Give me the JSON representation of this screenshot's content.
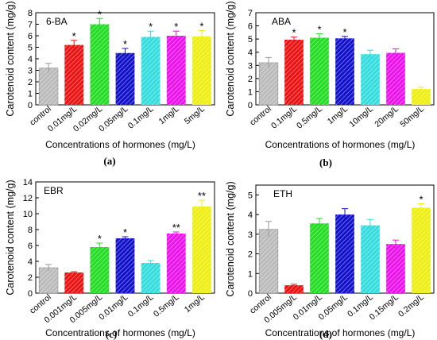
{
  "colors": {
    "control": "#bbbbbb",
    "red": "#ee1111",
    "green": "#22dd22",
    "blue": "#1111cc",
    "cyan": "#33dddd",
    "magenta": "#ee11ee",
    "yellow": "#eeee11"
  },
  "chart_data": [
    {
      "type": "bar",
      "panel_label": "(a)",
      "title": "6-BA",
      "xlabel": "Concentrations of hormones (mg/L)",
      "ylabel": "Carotenoid  content (mg/g)",
      "ylim": [
        0,
        8
      ],
      "yticks": [
        "0",
        "1",
        "2",
        "3",
        "4",
        "5",
        "6",
        "7",
        "8"
      ],
      "categories": [
        "control",
        "0.01mg/L",
        "0.02mg/L",
        "0.05mg/L",
        "0.1mg/L",
        "1mg/L",
        "5mg/L"
      ],
      "values": [
        3.2,
        5.2,
        7.0,
        4.5,
        5.9,
        6.0,
        5.95
      ],
      "errors": [
        0.4,
        0.4,
        0.5,
        0.4,
        0.5,
        0.4,
        0.5
      ],
      "significance": [
        "",
        "*",
        "*",
        "*",
        "*",
        "*",
        "*"
      ],
      "bar_colors": [
        "control",
        "red",
        "green",
        "blue",
        "cyan",
        "magenta",
        "yellow"
      ],
      "grid": false
    },
    {
      "type": "bar",
      "panel_label": "(b)",
      "title": "ABA",
      "xlabel": "Concentrations of hormones (mg/L)",
      "ylabel": "Carotenoid content (mg/g)",
      "ylim": [
        0,
        7
      ],
      "yticks": [
        "0",
        "1",
        "2",
        "3",
        "4",
        "5",
        "6",
        "7"
      ],
      "categories": [
        "control",
        "0.1mg/L",
        "0.5mg/L",
        "1mg/L",
        "10mg/L",
        "20mg/L",
        "50mg/L"
      ],
      "values": [
        3.2,
        4.95,
        5.1,
        5.05,
        3.85,
        3.95,
        1.2
      ],
      "errors": [
        0.4,
        0.2,
        0.3,
        0.15,
        0.3,
        0.3,
        0.15
      ],
      "significance": [
        "",
        "*",
        "*",
        "*",
        "",
        "",
        ""
      ],
      "bar_colors": [
        "control",
        "red",
        "green",
        "blue",
        "cyan",
        "magenta",
        "yellow"
      ],
      "grid": false
    },
    {
      "type": "bar",
      "panel_label": "(c)",
      "title": "EBR",
      "xlabel": "Concentrations of hormones (mg/L)",
      "ylabel": "Carotenoid  content (mg/g)",
      "ylim": [
        0,
        14
      ],
      "yticks": [
        "0",
        "2",
        "4",
        "6",
        "8",
        "10",
        "12",
        "14"
      ],
      "categories": [
        "control",
        "0.001mg/L",
        "0.005mg/L",
        "0.01mg/L",
        "0.1mg/L",
        "0.5mg/L",
        "1mg/L"
      ],
      "values": [
        3.2,
        2.6,
        5.8,
        6.9,
        3.8,
        7.5,
        10.9
      ],
      "errors": [
        0.4,
        0.1,
        0.5,
        0.2,
        0.3,
        0.2,
        0.8
      ],
      "significance": [
        "",
        "",
        "*",
        "*",
        "",
        "**",
        "**"
      ],
      "bar_colors": [
        "control",
        "red",
        "green",
        "blue",
        "cyan",
        "magenta",
        "yellow"
      ],
      "grid": false
    },
    {
      "type": "bar",
      "panel_label": "(d)",
      "title": "ETH",
      "xlabel": "Concentrations of hormones (mg/L)",
      "ylabel": "Carotenoid content (mg/g)",
      "ylim": [
        0,
        5.5
      ],
      "yticks": [
        "0",
        "1",
        "2",
        "3",
        "4",
        "5"
      ],
      "categories": [
        "control",
        "0.005mg/L",
        "0.01mg/L",
        "0.05mg/L",
        "0.1mg/L",
        "0.15mg/L",
        "0.2mg/L"
      ],
      "values": [
        3.25,
        0.4,
        3.55,
        4.0,
        3.45,
        2.5,
        4.35
      ],
      "errors": [
        0.4,
        0.05,
        0.25,
        0.3,
        0.3,
        0.2,
        0.2
      ],
      "significance": [
        "",
        "",
        "",
        "",
        "",
        "",
        "*"
      ],
      "bar_colors": [
        "control",
        "red",
        "green",
        "blue",
        "cyan",
        "magenta",
        "yellow"
      ],
      "grid": false
    }
  ]
}
